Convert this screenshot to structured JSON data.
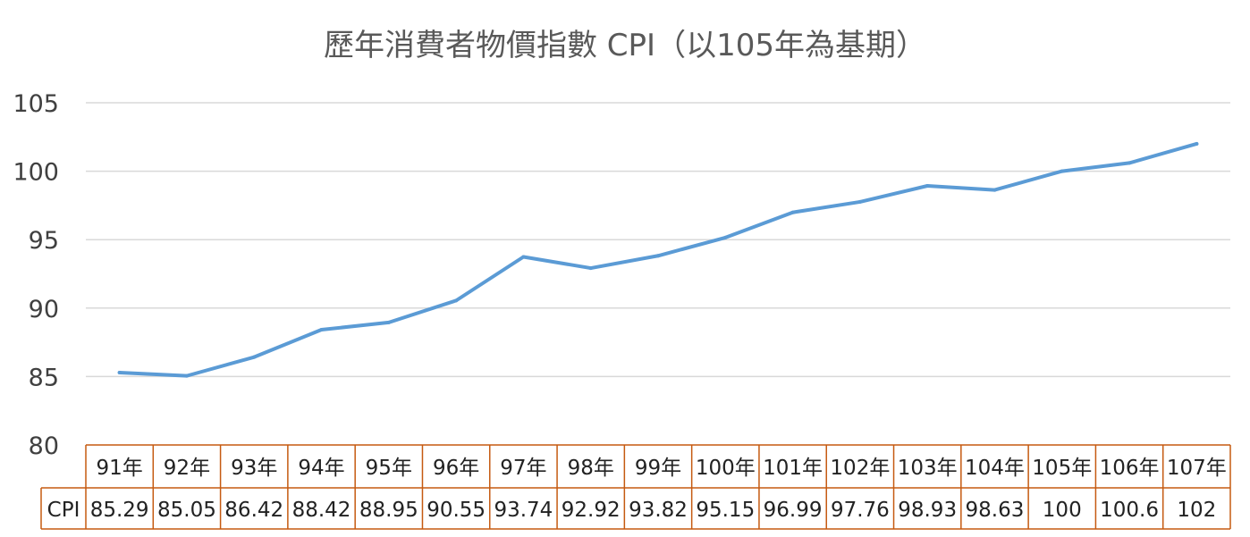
{
  "chart_data": {
    "type": "line",
    "title": "歷年消費者物價指數 CPI（以105年為基期）",
    "categories": [
      "91年",
      "92年",
      "93年",
      "94年",
      "95年",
      "96年",
      "97年",
      "98年",
      "99年",
      "100年",
      "101年",
      "102年",
      "103年",
      "104年",
      "105年",
      "106年",
      "107年"
    ],
    "series": [
      {
        "name": "CPI",
        "values": [
          85.29,
          85.05,
          86.42,
          88.42,
          88.95,
          90.55,
          93.74,
          92.92,
          93.82,
          95.15,
          96.99,
          97.76,
          98.93,
          98.63,
          100,
          100.6,
          102
        ],
        "labels": [
          "85.29",
          "85.05",
          "86.42",
          "88.42",
          "88.95",
          "90.55",
          "93.74",
          "92.92",
          "93.82",
          "95.15",
          "96.99",
          "97.76",
          "98.93",
          "98.63",
          "100",
          "100.6",
          "102"
        ]
      }
    ],
    "ylim": [
      80,
      105
    ],
    "yticks": [
      "80",
      "85",
      "90",
      "95",
      "100",
      "105"
    ],
    "grid": true,
    "data_table": true,
    "colors": {
      "line": "#5b9bd5",
      "grid": "#d9d9d9",
      "table_border": "#c55a11"
    }
  }
}
